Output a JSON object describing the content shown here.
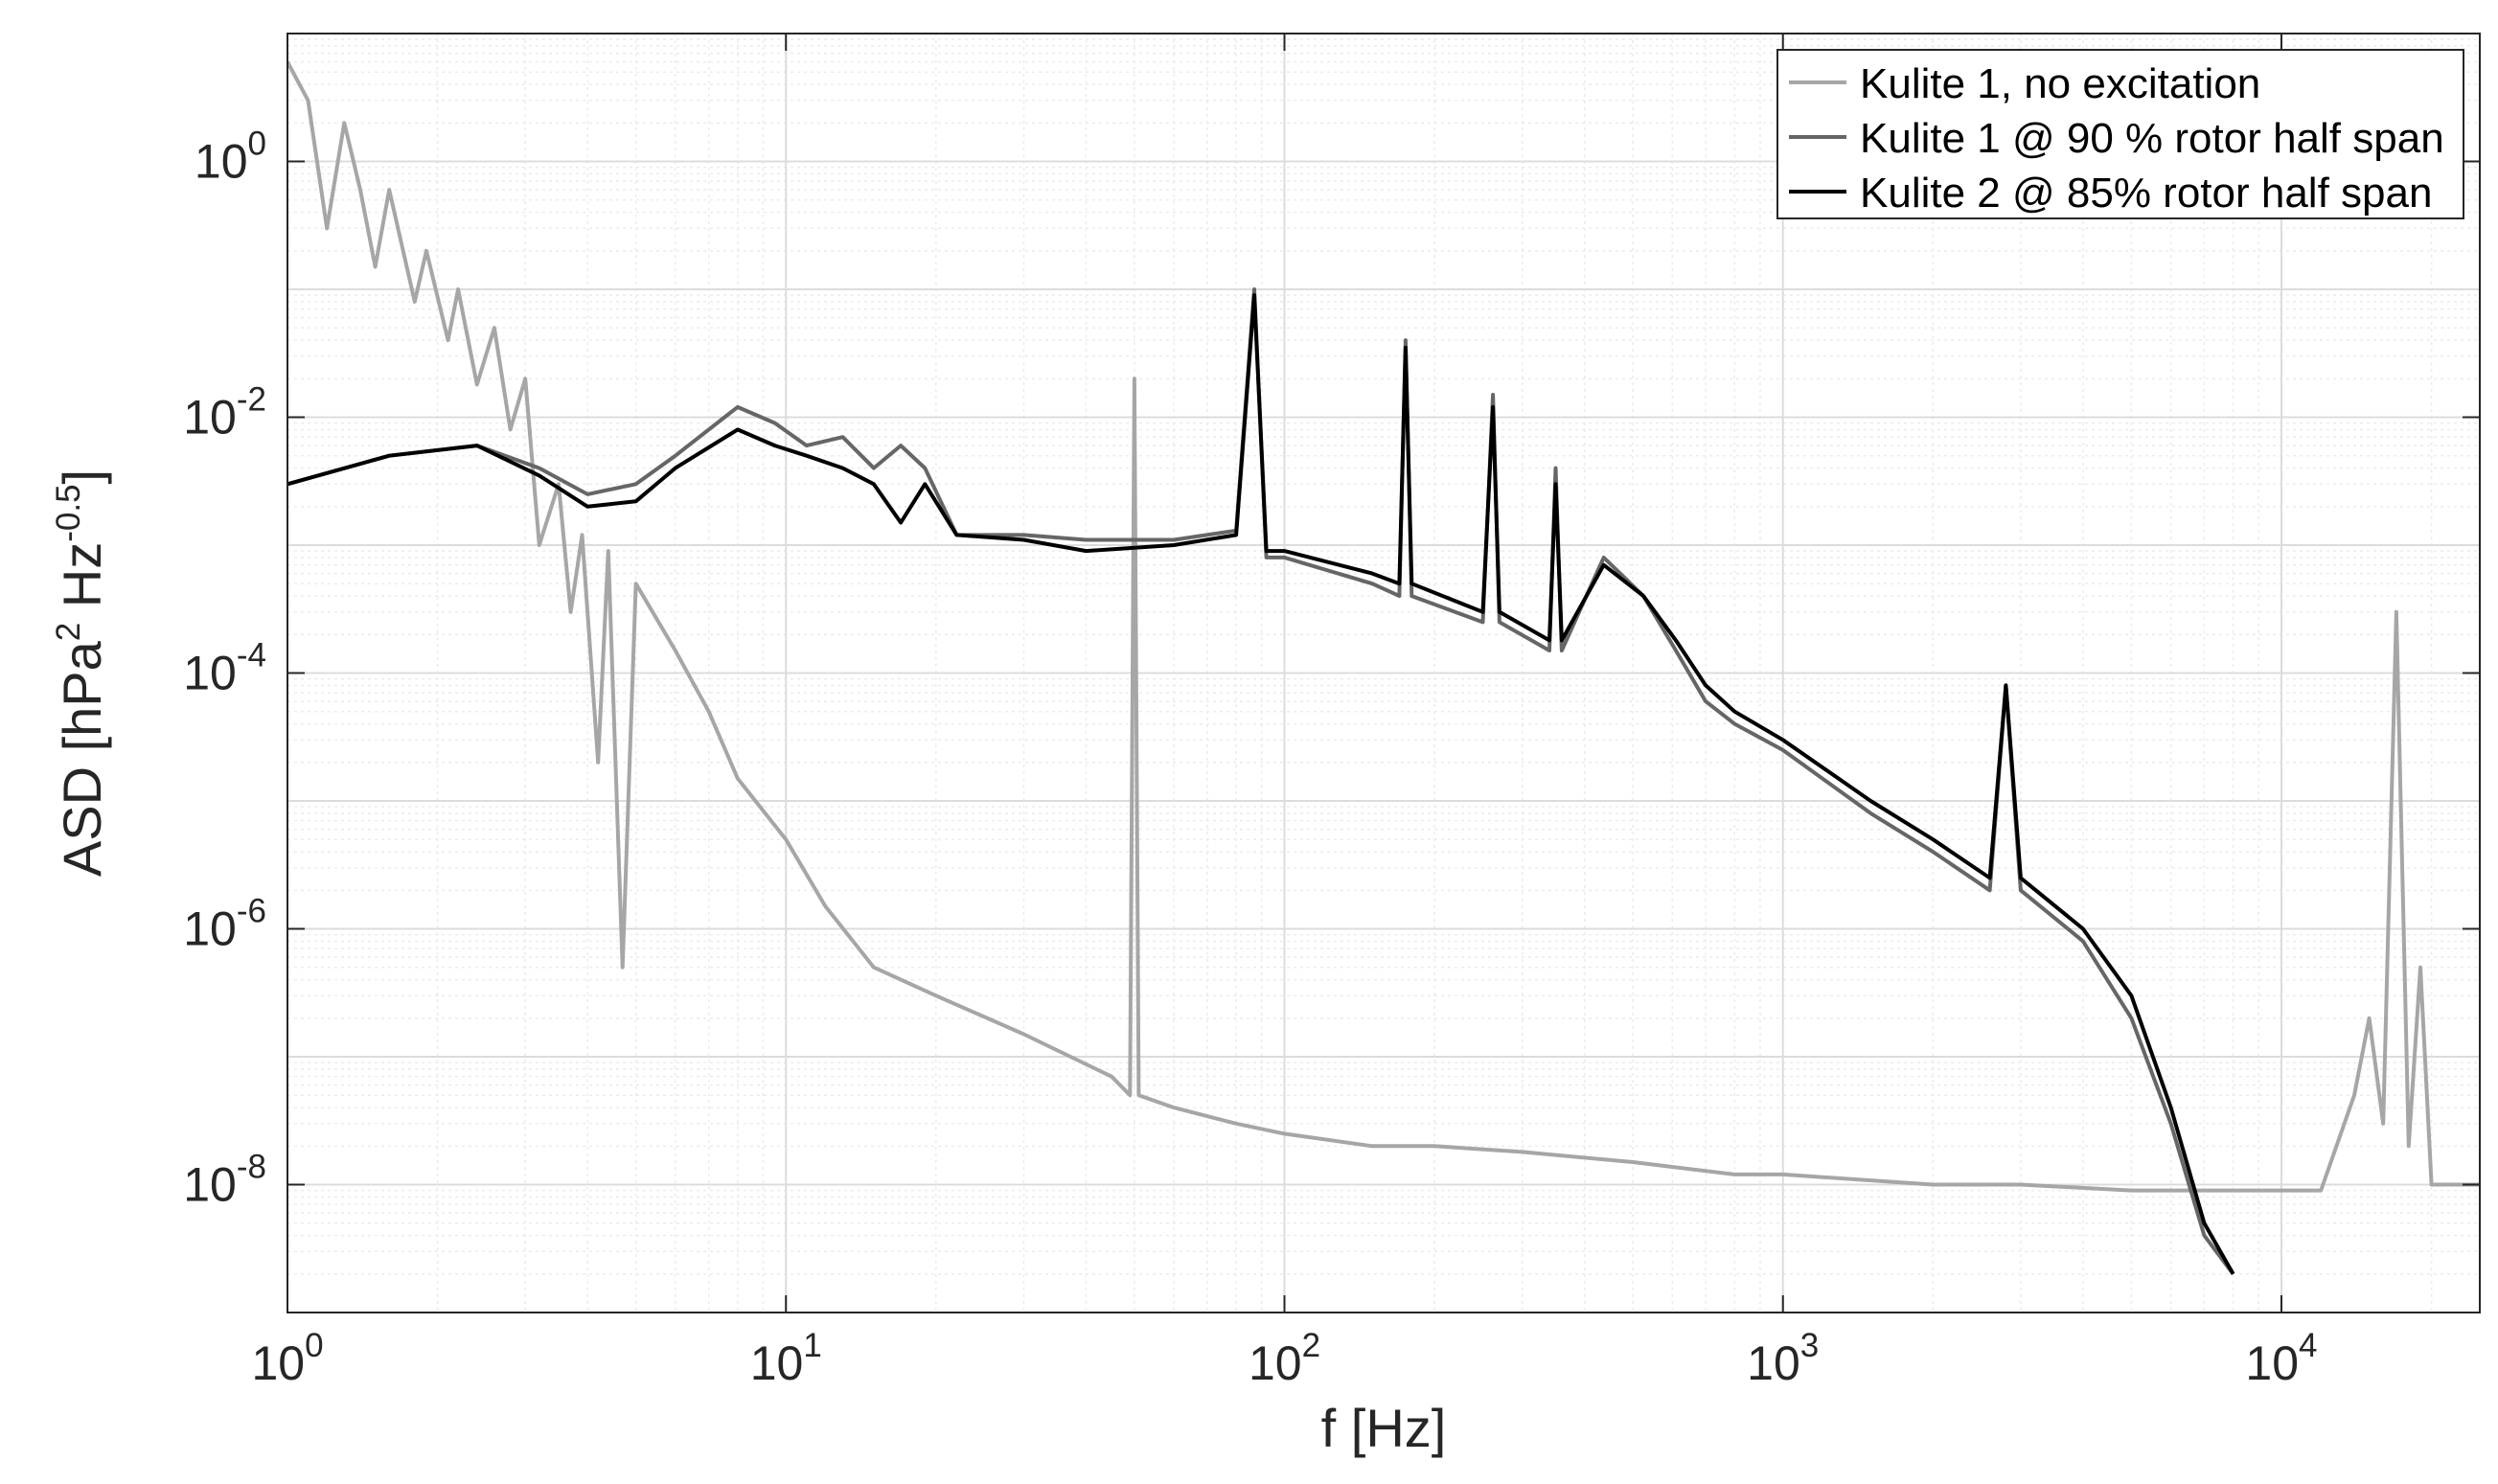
{
  "chart_data": {
    "type": "line",
    "title": "",
    "xlabel": "f [Hz]",
    "ylabel": {
      "text": "ASD [hPa",
      "sup1": "2",
      "mid": " Hz",
      "sup2": "-0.5",
      "end": "]"
    },
    "x_scale": "log",
    "y_scale": "log",
    "xlim": [
      1,
      25000
    ],
    "ylim": [
      1e-09,
      10
    ],
    "grid": true,
    "minor_grid": true,
    "legend_position": "top-right",
    "x_ticks": [
      {
        "value": 1,
        "base": "10",
        "exp": "0"
      },
      {
        "value": 10,
        "base": "10",
        "exp": "1"
      },
      {
        "value": 100,
        "base": "10",
        "exp": "2"
      },
      {
        "value": 1000,
        "base": "10",
        "exp": "3"
      },
      {
        "value": 10000,
        "base": "10",
        "exp": "4"
      }
    ],
    "y_ticks": [
      {
        "value": 1,
        "base": "10",
        "exp": "0"
      },
      {
        "value": 0.01,
        "base": "10",
        "exp": "-2"
      },
      {
        "value": 0.0001,
        "base": "10",
        "exp": "-4"
      },
      {
        "value": 1e-06,
        "base": "10",
        "exp": "-6"
      },
      {
        "value": 1e-08,
        "base": "10",
        "exp": "-8"
      }
    ],
    "series": [
      {
        "name": "Kulite 1, no excitation",
        "color": "#a6a6a6",
        "points": [
          [
            1,
            6
          ],
          [
            1.1,
            3
          ],
          [
            1.2,
            0.3
          ],
          [
            1.3,
            2
          ],
          [
            1.4,
            0.6
          ],
          [
            1.5,
            0.15
          ],
          [
            1.6,
            0.6
          ],
          [
            1.8,
            0.08
          ],
          [
            1.9,
            0.2
          ],
          [
            2.1,
            0.04
          ],
          [
            2.2,
            0.1
          ],
          [
            2.4,
            0.018
          ],
          [
            2.6,
            0.05
          ],
          [
            2.8,
            0.008
          ],
          [
            3.0,
            0.02
          ],
          [
            3.2,
            0.001
          ],
          [
            3.5,
            0.003
          ],
          [
            3.7,
            0.0003
          ],
          [
            3.9,
            0.0012
          ],
          [
            4.2,
            2e-05
          ],
          [
            4.4,
            0.0009
          ],
          [
            4.7,
            5e-07
          ],
          [
            5,
            0.0005
          ],
          [
            6,
            0.00015
          ],
          [
            7,
            5e-05
          ],
          [
            8,
            1.5e-05
          ],
          [
            10,
            5e-06
          ],
          [
            12,
            1.5e-06
          ],
          [
            15,
            5e-07
          ],
          [
            20,
            3e-07
          ],
          [
            30,
            1.5e-07
          ],
          [
            45,
            7e-08
          ],
          [
            49,
            5e-08
          ],
          [
            50,
            0.02
          ],
          [
            51,
            5e-08
          ],
          [
            60,
            4e-08
          ],
          [
            80,
            3e-08
          ],
          [
            100,
            2.5e-08
          ],
          [
            150,
            2e-08
          ],
          [
            200,
            2e-08
          ],
          [
            300,
            1.8e-08
          ],
          [
            500,
            1.5e-08
          ],
          [
            800,
            1.2e-08
          ],
          [
            1000,
            1.2e-08
          ],
          [
            2000,
            1e-08
          ],
          [
            3000,
            1e-08
          ],
          [
            5000,
            9e-09
          ],
          [
            8000,
            9e-09
          ],
          [
            12000,
            9e-09
          ],
          [
            14000,
            5e-08
          ],
          [
            15000,
            2e-07
          ],
          [
            16000,
            3e-08
          ],
          [
            17000,
            0.0003
          ],
          [
            18000,
            2e-08
          ],
          [
            19000,
            5e-07
          ],
          [
            20000,
            1e-08
          ],
          [
            25000,
            1e-08
          ]
        ]
      },
      {
        "name": "Kulite 1 @ 90 % rotor half span",
        "color": "#666666",
        "points": [
          [
            1,
            0.003
          ],
          [
            1.6,
            0.005
          ],
          [
            2.4,
            0.006
          ],
          [
            3.2,
            0.004
          ],
          [
            4,
            0.0025
          ],
          [
            5,
            0.003
          ],
          [
            6,
            0.005
          ],
          [
            8,
            0.012
          ],
          [
            9.5,
            0.009
          ],
          [
            11,
            0.006
          ],
          [
            13,
            0.007
          ],
          [
            15,
            0.004
          ],
          [
            17,
            0.006
          ],
          [
            19,
            0.004
          ],
          [
            22,
            0.0012
          ],
          [
            30,
            0.0012
          ],
          [
            40,
            0.0011
          ],
          [
            60,
            0.0011
          ],
          [
            80,
            0.0013
          ],
          [
            87,
            0.1
          ],
          [
            92,
            0.0008
          ],
          [
            100,
            0.0008
          ],
          [
            150,
            0.0005
          ],
          [
            170,
            0.0004
          ],
          [
            175,
            0.04
          ],
          [
            180,
            0.0004
          ],
          [
            250,
            0.00025
          ],
          [
            262,
            0.015
          ],
          [
            270,
            0.00025
          ],
          [
            340,
            0.00015
          ],
          [
            350,
            0.004
          ],
          [
            360,
            0.00015
          ],
          [
            437,
            0.0008
          ],
          [
            525,
            0.0004
          ],
          [
            610,
            0.00015
          ],
          [
            700,
            6e-05
          ],
          [
            800,
            4e-05
          ],
          [
            1000,
            2.5e-05
          ],
          [
            1500,
            8e-06
          ],
          [
            2000,
            4e-06
          ],
          [
            2600,
            2e-06
          ],
          [
            2800,
            8e-05
          ],
          [
            3000,
            2e-06
          ],
          [
            4000,
            8e-07
          ],
          [
            5000,
            2e-07
          ],
          [
            6000,
            3e-08
          ],
          [
            7000,
            4e-09
          ],
          [
            8000,
            2e-09
          ]
        ]
      },
      {
        "name": "Kulite 2 @ 85% rotor half span",
        "color": "#000000",
        "points": [
          [
            1,
            0.003
          ],
          [
            1.6,
            0.005
          ],
          [
            2.4,
            0.006
          ],
          [
            3.2,
            0.0035
          ],
          [
            4,
            0.002
          ],
          [
            5,
            0.0022
          ],
          [
            6,
            0.004
          ],
          [
            8,
            0.008
          ],
          [
            9.5,
            0.006
          ],
          [
            11,
            0.005
          ],
          [
            13,
            0.004
          ],
          [
            15,
            0.003
          ],
          [
            17,
            0.0015
          ],
          [
            19,
            0.003
          ],
          [
            22,
            0.0012
          ],
          [
            30,
            0.0011
          ],
          [
            40,
            0.0009
          ],
          [
            60,
            0.001
          ],
          [
            80,
            0.0012
          ],
          [
            87,
            0.09
          ],
          [
            92,
            0.0009
          ],
          [
            100,
            0.0009
          ],
          [
            150,
            0.0006
          ],
          [
            170,
            0.0005
          ],
          [
            175,
            0.035
          ],
          [
            180,
            0.0005
          ],
          [
            250,
            0.0003
          ],
          [
            262,
            0.012
          ],
          [
            270,
            0.0003
          ],
          [
            340,
            0.00018
          ],
          [
            350,
            0.003
          ],
          [
            360,
            0.00018
          ],
          [
            437,
            0.0007
          ],
          [
            525,
            0.0004
          ],
          [
            610,
            0.00018
          ],
          [
            700,
            8e-05
          ],
          [
            800,
            5e-05
          ],
          [
            1000,
            3e-05
          ],
          [
            1500,
            1e-05
          ],
          [
            2000,
            5e-06
          ],
          [
            2600,
            2.5e-06
          ],
          [
            2800,
            8e-05
          ],
          [
            3000,
            2.5e-06
          ],
          [
            4000,
            1e-06
          ],
          [
            5000,
            3e-07
          ],
          [
            6000,
            4e-08
          ],
          [
            7000,
            5e-09
          ],
          [
            8000,
            2e-09
          ]
        ]
      }
    ]
  }
}
